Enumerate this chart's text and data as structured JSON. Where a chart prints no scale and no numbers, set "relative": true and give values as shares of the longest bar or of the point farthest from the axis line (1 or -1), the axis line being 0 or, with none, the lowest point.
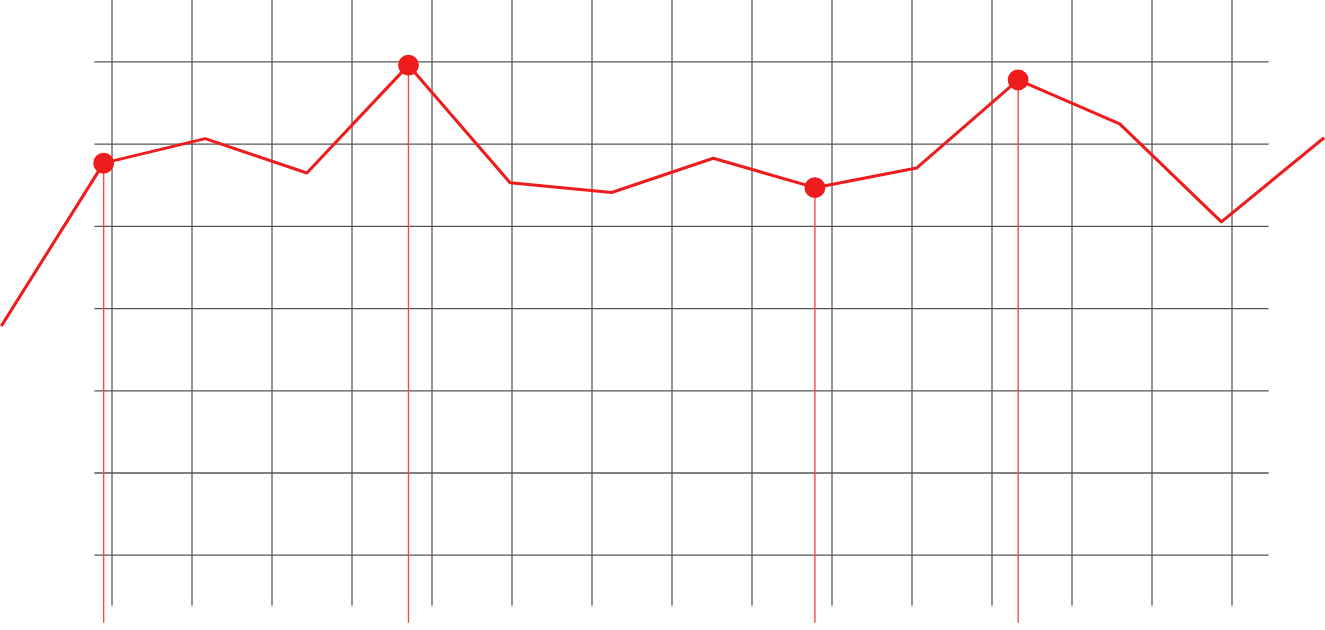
{
  "chart_data": {
    "type": "line",
    "relative": true,
    "grid": true,
    "categories": [
      null,
      null,
      null,
      null,
      null,
      null,
      null,
      null,
      null,
      null,
      null,
      null,
      null,
      null
    ],
    "series": [
      {
        "color": "#ee1c1c",
        "values": [
          0.47,
          0.8,
          0.85,
          0.78,
          1,
          0.76,
          0.74,
          0.81,
          0.75,
          0.79,
          0.97,
          0.88,
          0.68,
          0.85
        ]
      }
    ]
  }
}
